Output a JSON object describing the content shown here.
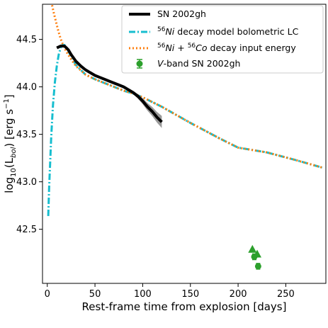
{
  "chart_data": {
    "type": "line",
    "xlabel": "Rest-frame time from explosion [days]",
    "ylabel_parts": {
      "pre": "log",
      "sub": "10",
      "mid": "(L",
      "sub2": "bol",
      "post": ") [erg s",
      "sup": "−1",
      "end": "]"
    },
    "xlim": [
      -5,
      292
    ],
    "ylim": [
      41.93,
      44.87
    ],
    "xticks": [
      0,
      50,
      100,
      150,
      200,
      250
    ],
    "yticks": [
      42.5,
      43.0,
      43.5,
      44.0,
      44.5
    ],
    "xtick_labels": [
      "0",
      "50",
      "100",
      "150",
      "200",
      "250"
    ],
    "ytick_labels": [
      "42.5",
      "43.0",
      "43.5",
      "44.0",
      "44.5"
    ],
    "legend_position": "top-right",
    "series": [
      {
        "name": "SN 2002gh",
        "style": "solid-thick",
        "color": "#000000",
        "x": [
          10,
          12,
          14,
          16,
          18,
          20,
          22,
          25,
          30,
          35,
          40,
          45,
          50,
          55,
          60,
          65,
          70,
          75,
          80,
          85,
          90,
          95,
          100,
          105,
          110,
          115,
          120
        ],
        "y": [
          44.41,
          44.42,
          44.43,
          44.43,
          44.43,
          44.41,
          44.39,
          44.34,
          44.27,
          44.22,
          44.18,
          44.15,
          44.12,
          44.1,
          44.08,
          44.06,
          44.04,
          44.02,
          44.0,
          43.97,
          43.94,
          43.9,
          43.85,
          43.79,
          43.74,
          43.68,
          43.63
        ]
      },
      {
        "name_parts": {
          "sup": "56",
          "main": "Ni",
          "rest": " decay model bolometric LC"
        },
        "style": "dashdot",
        "color": "#17becf",
        "x": [
          1,
          2,
          3,
          4,
          5,
          6,
          8,
          10,
          12,
          14,
          16,
          18,
          20,
          25,
          30,
          40,
          50,
          60,
          70,
          80,
          90,
          100,
          120,
          150,
          180,
          200,
          230,
          260,
          288
        ],
        "y": [
          42.64,
          42.95,
          43.2,
          43.44,
          43.64,
          43.81,
          44.05,
          44.22,
          44.34,
          44.41,
          44.44,
          44.44,
          44.42,
          44.32,
          44.23,
          44.13,
          44.08,
          44.04,
          44.0,
          43.96,
          43.93,
          43.89,
          43.79,
          43.62,
          43.46,
          43.36,
          43.31,
          43.23,
          43.15
        ]
      },
      {
        "name_parts": {
          "sup1": "56",
          "main1": "Ni",
          "mid": " + ",
          "sup2": "56",
          "main2": "Co",
          "rest": " decay input energy"
        },
        "style": "dotted",
        "color": "#ff7f0e",
        "x": [
          5,
          7,
          9,
          11,
          13,
          15,
          17,
          20,
          25,
          30,
          40,
          50,
          60,
          70,
          80,
          90,
          100,
          120,
          150,
          180,
          200,
          230,
          260,
          288
        ],
        "y": [
          44.86,
          44.77,
          44.69,
          44.61,
          44.54,
          44.48,
          44.43,
          44.37,
          44.29,
          44.22,
          44.13,
          44.08,
          44.04,
          44.0,
          43.96,
          43.93,
          43.89,
          43.79,
          43.62,
          43.46,
          43.36,
          43.31,
          43.23,
          43.15
        ]
      }
    ],
    "vband": {
      "name_parts": {
        "italic": "V",
        "rest": "-band SN 2002gh"
      },
      "color": "#2ca02c",
      "points": [
        {
          "x": 217,
          "y": 42.21,
          "yerr": 0.03
        },
        {
          "x": 221,
          "y": 42.11,
          "yerr": 0.03
        }
      ],
      "upper_limits": [
        {
          "x": 215,
          "y": 42.29
        },
        {
          "x": 220,
          "y": 42.24
        }
      ]
    }
  }
}
